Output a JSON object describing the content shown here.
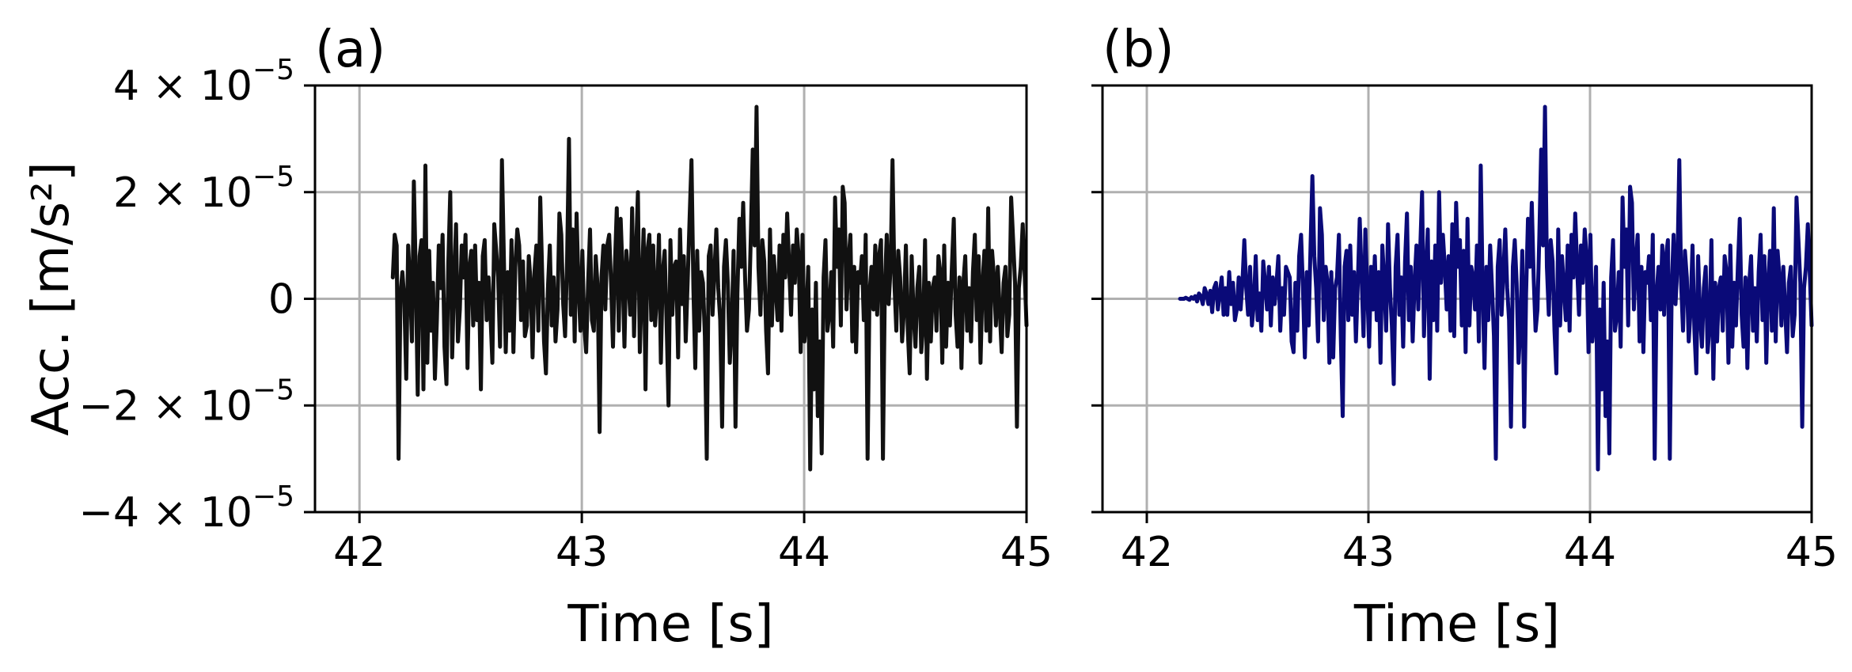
{
  "chart_data": [
    {
      "panel_label": "(a)",
      "type": "line",
      "xlabel": "Time [s]",
      "ylabel": "Acc. [m/s²]",
      "xlim": [
        41.8,
        45.0
      ],
      "ylim": [
        -4e-05,
        4e-05
      ],
      "x_ticks": [
        {
          "value": 42,
          "label": "42"
        },
        {
          "value": 43,
          "label": "43"
        },
        {
          "value": 44,
          "label": "44"
        },
        {
          "value": 45,
          "label": "45"
        }
      ],
      "y_ticks": [
        {
          "value": 4e-05,
          "label": "4 × 10",
          "exponent": "−5"
        },
        {
          "value": 2e-05,
          "label": "2 × 10",
          "exponent": "−5"
        },
        {
          "value": 0,
          "label": "0",
          "exponent": ""
        },
        {
          "value": -2e-05,
          "label": "−2 × 10",
          "exponent": "−5"
        },
        {
          "value": -4e-05,
          "label": "−4 × 10",
          "exponent": "−5"
        }
      ],
      "grid": true,
      "series": [
        {
          "color": "#111111",
          "x_start": 42.15,
          "x_end": 45.0,
          "values_e5": [
            0.4,
            1.2,
            1.0,
            -3.0,
            0.1,
            0.5,
            0.0,
            -1.5,
            1.0,
            0.3,
            -0.8,
            2.2,
            0.4,
            -1.8,
            0.8,
            1.1,
            -1.7,
            2.5,
            -1.2,
            0.9,
            -0.6,
            0.3,
            -1.5,
            -0.4,
            1.0,
            0.2,
            1.2,
            -0.9,
            -1.6,
            0.7,
            2.0,
            -1.1,
            0.3,
            1.4,
            -0.8,
            -0.2,
            1.0,
            0.4,
            1.2,
            -1.3,
            0.6,
            0.9,
            -0.5,
            1.0,
            -0.4,
            0.3,
            -1.7,
            0.8,
            1.1,
            -0.4,
            0.4,
            -0.3,
            -1.2,
            1.4,
            0.9,
            0.4,
            -0.9,
            2.6,
            0.8,
            -1.0,
            0.5,
            -0.6,
            1.1,
            -1.0,
            0.6,
            1.3,
            1.0,
            -0.4,
            0.7,
            -0.7,
            -0.5,
            0.8,
            0.3,
            -1.1,
            0.5,
            1.0,
            -0.6,
            1.9,
            0.5,
            -0.8,
            -1.4,
            0.2,
            1.0,
            -0.5,
            0.4,
            -0.8,
            -0.2,
            1.6,
            1.2,
            -0.1,
            -0.7,
            0.7,
            3.0,
            -0.3,
            1.3,
            -0.8,
            1.6,
            0.2,
            -0.6,
            0.9,
            -0.5,
            -1.0,
            0.3,
            1.3,
            -0.4,
            -0.6,
            0.8,
            0.2,
            -2.5,
            0.4,
            1.0,
            -0.2,
            1.0,
            1.2,
            0.3,
            -0.9,
            0.6,
            1.7,
            -0.6,
            1.5,
            0.5,
            -0.9,
            0.9,
            0.4,
            -0.3,
            1.7,
            -0.7,
            0.8,
            2.0,
            -1.0,
            0.2,
            1.3,
            -1.7,
            0.9,
            1.2,
            -0.4,
            1.0,
            -0.5,
            0.1,
            1.2,
            -1.2,
            0.5,
            0.9,
            -0.4,
            -2.0,
            1.1,
            -0.3,
            0.6,
            0.7,
            -1.1,
            1.3,
            -0.1,
            0.8,
            -0.8,
            0.3,
            1.5,
            2.6,
            0.2,
            -1.3,
            0.9,
            -0.6,
            0.5,
            0.3,
            -0.7,
            -3.0,
            0.8,
            1.0,
            -0.3,
            0.5,
            1.3,
            0.2,
            -0.4,
            -2.4,
            0.6,
            1.1,
            0.3,
            -1.2,
            -0.5,
            0.9,
            -2.4,
            0.1,
            1.5,
            0.6,
            1.8,
            0.4,
            -0.6,
            -0.2,
            1.2,
            2.8,
            1.0,
            3.6,
            0.6,
            -0.3,
            1.1,
            0.7,
            -0.6,
            -1.4,
            1.3,
            -0.5,
            0.8,
            0.2,
            -0.4,
            1.0,
            -0.6,
            1.2,
            0.4,
            1.6,
            0.6,
            -0.3,
            1.0,
            0.3,
            1.3,
            0.8,
            -1.0,
            1.2,
            -0.8,
            -0.4,
            0.6,
            -3.2,
            -0.2,
            -1.7,
            0.3,
            -2.2,
            -0.8,
            -2.9,
            0.4,
            1.1,
            -0.6,
            -0.3,
            0.5,
            -0.9,
            1.9,
            0.6,
            1.3,
            -0.5,
            2.1,
            1.8,
            -0.2,
            0.7,
            1.2,
            -0.8,
            0.6,
            -1.0,
            0.5,
            0.3,
            0.8,
            -0.4,
            1.2,
            -3.0,
            0.1,
            0.6,
            -0.2,
            1.0,
            -0.3,
            0.8,
            1.1,
            -3.0,
            0.2,
            1.2,
            -0.1,
            0.6,
            2.6,
            0.3,
            -0.6,
            0.9,
            0.4,
            -0.8,
            -0.2,
            1.0,
            -0.6,
            -1.4,
            0.8,
            -0.3,
            -0.9,
            0.2,
            0.6,
            -1.0,
            -0.5,
            1.1,
            -1.5,
            0.3,
            -0.8,
            0.2,
            0.4,
            -0.6,
            0.8,
            0.5,
            -1.2,
            1.0,
            -0.9,
            0.3,
            -0.5,
            0.6,
            1.5,
            -0.3,
            -0.9,
            0.4,
            -1.3,
            0.3,
            0.8,
            -0.6,
            0.2,
            -0.8,
            0.5,
            1.2,
            -0.4,
            0.8,
            -1.2,
            0.3,
            0.9,
            -0.6,
            1.7,
            -0.8,
            0.9,
            0.4,
            -0.5,
            0.6,
            -0.2,
            -1.0,
            0.3,
            0.6,
            -0.7,
            -0.3,
            1.9,
            1.1,
            0.3,
            -2.4,
            0.2,
            0.6,
            1.4,
            0.5,
            -0.5
          ]
        }
      ]
    },
    {
      "panel_label": "(b)",
      "type": "line",
      "xlabel": "Time [s]",
      "ylabel": "",
      "xlim": [
        41.8,
        45.0
      ],
      "ylim": [
        -4e-05,
        4e-05
      ],
      "x_ticks": [
        {
          "value": 42,
          "label": "42"
        },
        {
          "value": 43,
          "label": "43"
        },
        {
          "value": 44,
          "label": "44"
        },
        {
          "value": 45,
          "label": "45"
        }
      ],
      "grid": true,
      "series": [
        {
          "color": "#0a0a78",
          "x_start": 42.15,
          "x_end": 45.0,
          "values_e5": [
            0.0,
            0.0,
            0.0,
            0.02,
            0.0,
            -0.02,
            0.03,
            0.0,
            0.05,
            -0.05,
            0.1,
            0.05,
            -0.1,
            0.2,
            0.1,
            -0.1,
            0.15,
            -0.25,
            0.2,
            0.3,
            -0.2,
            0.1,
            0.4,
            -0.3,
            0.2,
            -0.3,
            0.5,
            -0.1,
            0.3,
            -0.4,
            -0.2,
            0.4,
            -0.2,
            0.3,
            1.1,
            0.2,
            -0.3,
            0.6,
            -0.5,
            -0.1,
            0.8,
            -0.4,
            0.1,
            -0.6,
            0.7,
            0.3,
            -0.2,
            0.6,
            -0.5,
            0.4,
            -0.1,
            0.3,
            0.8,
            -0.6,
            0.2,
            -0.3,
            0.6,
            0.5,
            0.4,
            -0.8,
            -1.0,
            0.3,
            -0.6,
            0.8,
            1.2,
            0.2,
            -1.1,
            0.5,
            -0.5,
            1.0,
            2.3,
            0.8,
            0.2,
            -0.8,
            1.7,
            1.2,
            -0.4,
            0.6,
            0.3,
            -1.2,
            0.5,
            -1.1,
            0.2,
            0.4,
            1.2,
            -0.7,
            -2.2,
            0.6,
            0.9,
            -0.4,
            1.0,
            -0.3,
            0.5,
            -0.8,
            0.3,
            1.5,
            0.4,
            -0.7,
            1.3,
            0.2,
            -0.9,
            0.6,
            -0.2,
            0.8,
            -0.4,
            0.5,
            -1.2,
            1.0,
            0.3,
            -0.6,
            1.4,
            0.2,
            -0.5,
            -1.6,
            0.6,
            1.2,
            -0.3,
            0.4,
            -0.9,
            0.7,
            1.6,
            -0.4,
            0.6,
            -0.8,
            0.3,
            1.0,
            -0.2,
            0.9,
            2.0,
            -0.7,
            0.5,
            1.3,
            -1.5,
            0.7,
            -0.4,
            1.0,
            -0.6,
            2.0,
            0.3,
            1.2,
            0.6,
            -0.2,
            0.8,
            -0.6,
            1.4,
            -0.7,
            1.8,
            0.6,
            1.1,
            -0.5,
            0.9,
            -1.0,
            1.5,
            -0.5,
            0.6,
            0.4,
            -0.2,
            1.0,
            -0.8,
            2.5,
            0.2,
            -1.3,
            0.6,
            -0.4,
            1.0,
            0.2,
            -0.7,
            -3.0,
            0.6,
            1.1,
            -0.3,
            0.5,
            1.3,
            0.2,
            -0.4,
            -2.4,
            0.6,
            1.1,
            0.3,
            -1.2,
            -0.5,
            0.9,
            -2.4,
            0.1,
            1.5,
            0.6,
            1.8,
            0.4,
            -0.6,
            -0.2,
            1.2,
            2.8,
            1.0,
            3.6,
            0.6,
            -0.3,
            1.1,
            0.7,
            -0.6,
            -1.4,
            1.3,
            -0.5,
            0.8,
            0.2,
            -0.4,
            1.0,
            -0.6,
            1.2,
            0.4,
            1.6,
            0.6,
            -0.3,
            1.0,
            0.3,
            1.3,
            0.8,
            -1.0,
            1.2,
            -0.8,
            -0.4,
            0.6,
            -3.2,
            -0.2,
            -1.7,
            0.3,
            -2.2,
            -0.8,
            -2.9,
            0.4,
            1.1,
            -0.6,
            -0.3,
            0.5,
            -0.9,
            1.9,
            0.6,
            1.3,
            -0.5,
            2.1,
            1.8,
            -0.2,
            0.7,
            1.2,
            -0.8,
            0.6,
            -1.0,
            0.5,
            0.3,
            0.8,
            -0.4,
            1.2,
            -3.0,
            0.1,
            0.6,
            -0.2,
            1.0,
            -0.3,
            0.8,
            1.1,
            -3.0,
            0.2,
            1.2,
            -0.1,
            0.6,
            2.6,
            0.3,
            -0.6,
            0.9,
            0.4,
            -0.8,
            -0.2,
            1.0,
            -0.6,
            -1.4,
            0.8,
            -0.3,
            -0.9,
            0.2,
            0.6,
            -1.0,
            -0.5,
            1.1,
            -1.5,
            0.3,
            -0.8,
            0.2,
            0.4,
            -0.6,
            0.8,
            0.5,
            -1.2,
            1.0,
            -0.9,
            0.3,
            -0.5,
            0.6,
            1.5,
            -0.3,
            -0.9,
            0.4,
            -1.3,
            0.3,
            0.8,
            -0.6,
            0.2,
            -0.8,
            0.5,
            1.2,
            -0.4,
            0.8,
            -1.2,
            0.3,
            0.9,
            -0.6,
            1.7,
            -0.8,
            0.9,
            0.4,
            -0.5,
            0.6,
            -0.2,
            -1.0,
            0.3,
            0.6,
            -0.7,
            -0.3,
            1.9,
            1.1,
            0.3,
            -2.4,
            0.2,
            0.6,
            1.4,
            0.5,
            -0.5
          ]
        }
      ]
    }
  ]
}
